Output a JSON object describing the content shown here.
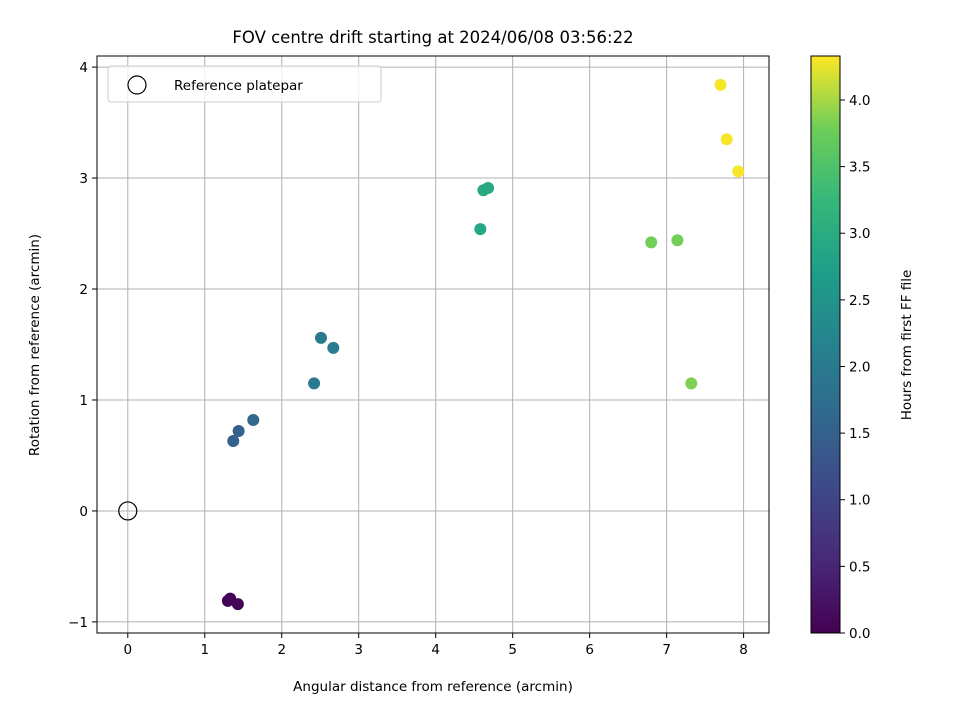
{
  "chart_data": {
    "type": "scatter",
    "title": "FOV centre drift starting at 2024/06/08 03:56:22",
    "xlabel": "Angular distance from reference (arcmin)",
    "ylabel": "Rotation from reference (arcmin)",
    "xlim": [
      -0.4,
      8.33
    ],
    "ylim": [
      -1.1,
      4.1
    ],
    "x_ticks": [
      0,
      1,
      2,
      3,
      4,
      5,
      6,
      7,
      8
    ],
    "x_tick_labels": [
      "0",
      "1",
      "2",
      "3",
      "4",
      "5",
      "6",
      "7",
      "8"
    ],
    "y_ticks": [
      -1,
      0,
      1,
      2,
      3,
      4
    ],
    "y_tick_labels": [
      "−1",
      "0",
      "1",
      "2",
      "3",
      "4"
    ],
    "grid": true,
    "legend": {
      "placement": "top-left",
      "entries": [
        {
          "label": "Reference platepar",
          "marker": "hollow-circle"
        }
      ]
    },
    "reference_point": {
      "x": 0,
      "y": 0
    },
    "series": [
      {
        "color_by": "hours",
        "points": [
          {
            "x": 1.3,
            "y": -0.81,
            "hours": 0.0
          },
          {
            "x": 1.33,
            "y": -0.79,
            "hours": 0.03
          },
          {
            "x": 1.43,
            "y": -0.84,
            "hours": 0.07
          },
          {
            "x": 1.37,
            "y": 0.63,
            "hours": 1.5
          },
          {
            "x": 1.44,
            "y": 0.72,
            "hours": 1.5
          },
          {
            "x": 1.63,
            "y": 0.82,
            "hours": 1.6
          },
          {
            "x": 2.42,
            "y": 1.15,
            "hours": 2.0
          },
          {
            "x": 2.51,
            "y": 1.56,
            "hours": 2.0
          },
          {
            "x": 2.67,
            "y": 1.47,
            "hours": 2.05
          },
          {
            "x": 4.58,
            "y": 2.54,
            "hours": 2.9
          },
          {
            "x": 4.62,
            "y": 2.89,
            "hours": 2.95
          },
          {
            "x": 4.68,
            "y": 2.91,
            "hours": 2.95
          },
          {
            "x": 6.8,
            "y": 2.42,
            "hours": 3.8
          },
          {
            "x": 7.14,
            "y": 2.44,
            "hours": 3.8
          },
          {
            "x": 7.32,
            "y": 1.15,
            "hours": 3.85
          },
          {
            "x": 7.7,
            "y": 3.84,
            "hours": 4.3
          },
          {
            "x": 7.78,
            "y": 3.35,
            "hours": 4.3
          },
          {
            "x": 7.93,
            "y": 3.06,
            "hours": 4.3
          }
        ]
      }
    ],
    "colorbar": {
      "label": "Hours from first FF file",
      "range": [
        0.0,
        4.33
      ],
      "ticks": [
        0.0,
        0.5,
        1.0,
        1.5,
        2.0,
        2.5,
        3.0,
        3.5,
        4.0
      ],
      "tick_labels": [
        "0.0",
        "0.5",
        "1.0",
        "1.5",
        "2.0",
        "2.5",
        "3.0",
        "3.5",
        "4.0"
      ],
      "colormap": "viridis"
    }
  }
}
